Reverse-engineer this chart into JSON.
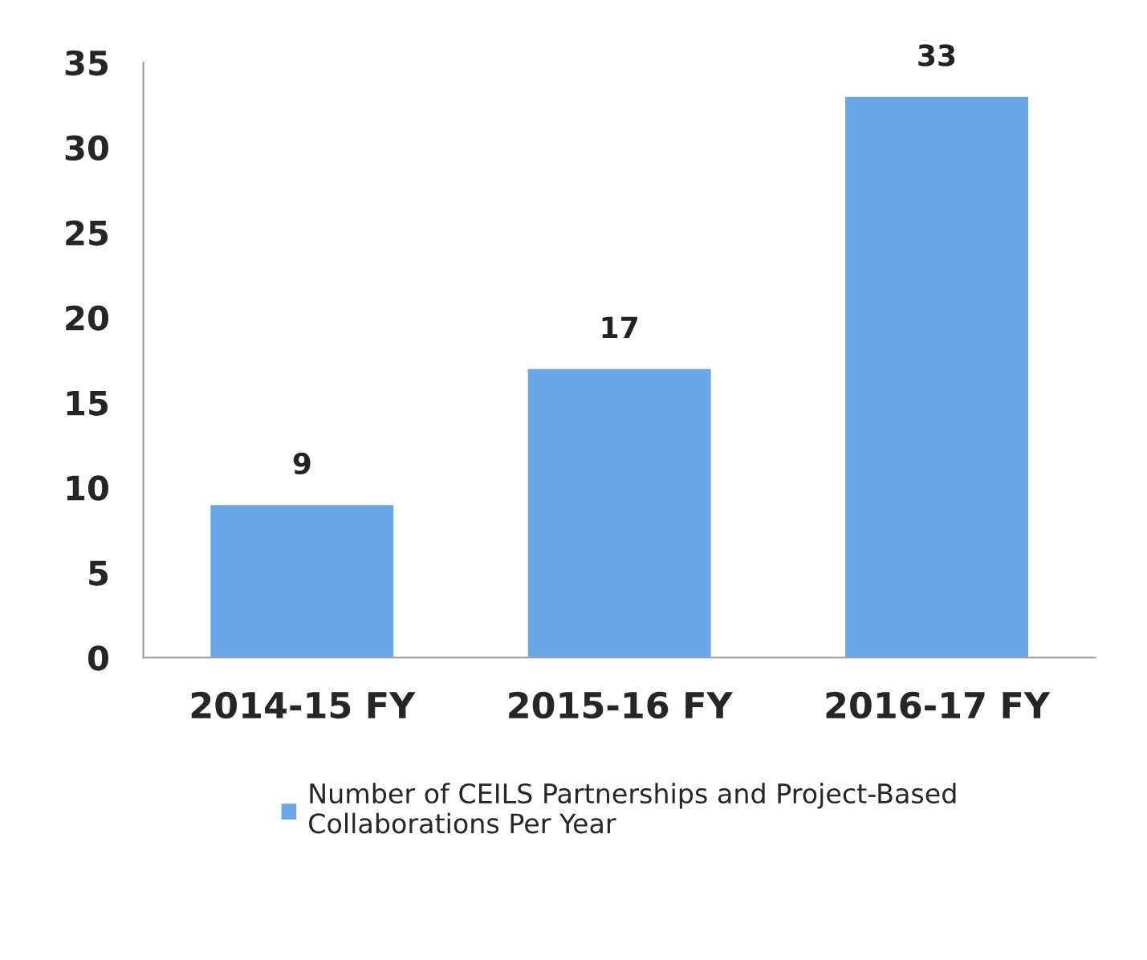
{
  "chart_data": {
    "type": "bar",
    "categories": [
      "2014-15 FY",
      "2015-16 FY",
      "2016-17 FY"
    ],
    "series": [
      {
        "name": "Number of CEILS Partnerships and Project-Based\nCollaborations Per Year",
        "color": "#6aa6e8",
        "values": [
          9,
          17,
          33
        ]
      }
    ],
    "ylim": [
      0,
      35
    ],
    "yticks": [
      0,
      5,
      10,
      15,
      20,
      25,
      30,
      35
    ],
    "data_labels": true,
    "grid": false,
    "legend": "bottom"
  }
}
